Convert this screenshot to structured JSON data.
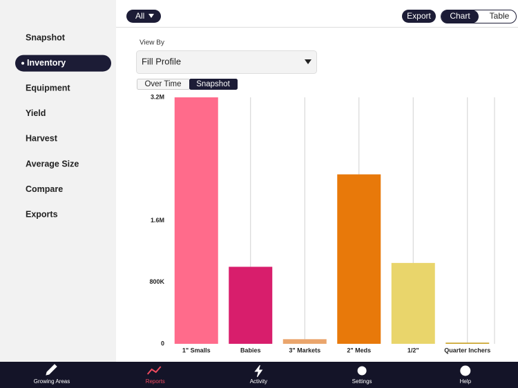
{
  "top_bar": {
    "filter": "All",
    "export": "Export",
    "view_toggle": [
      "Chart",
      "Table"
    ],
    "view_selected": 0
  },
  "sidebar": {
    "items": [
      "Snapshot",
      "Inventory",
      "Equipment",
      "Yield",
      "Harvest",
      "Average Size",
      "Compare",
      "Exports"
    ],
    "active": 1
  },
  "controls": {
    "view_by_label": "View By",
    "view_by_value": "Fill Profile",
    "mode_toggle": [
      "Over Time",
      "Snapshot"
    ],
    "mode_selected": 1
  },
  "chart_data": {
    "type": "bar",
    "categories": [
      "1\" Smalls",
      "Babies",
      "3\" Markets",
      "2\" Meds",
      "1/2\"",
      "Quarter Inchers"
    ],
    "values": [
      3200000,
      1000000,
      60000,
      2200000,
      1050000,
      15000
    ],
    "colors": [
      "#ff6b8b",
      "#d81e6c",
      "#eaa56c",
      "#e8790a",
      "#e9d56b",
      "#c9a227"
    ],
    "ylim": [
      0,
      3200000
    ],
    "yticks": [
      0,
      {
        "value": 800000,
        "label": "800K"
      },
      {
        "value": 1600000,
        "label": "1.6M"
      },
      {
        "value": 3200000,
        "label": "3.2M"
      }
    ]
  },
  "tab_bar": {
    "items": [
      "Growing Areas",
      "Reports",
      "Activity",
      "Settings",
      "Help"
    ],
    "active": 1
  }
}
